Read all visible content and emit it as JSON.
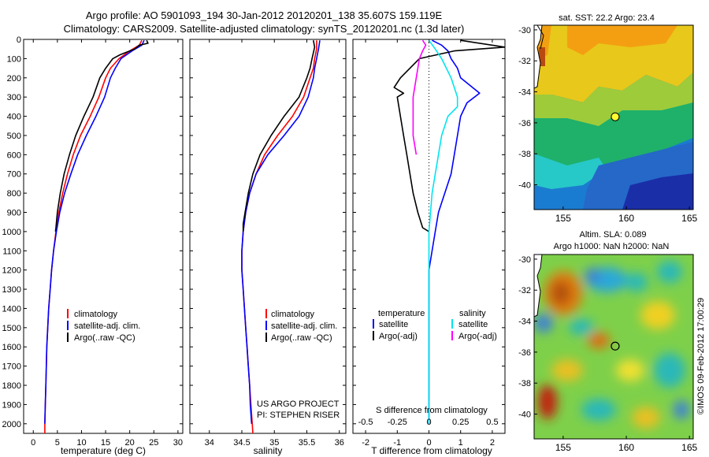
{
  "header": {
    "line1": "Argo profile: AO 5901093_194 30-Jan-2012 20120201_138 35.607S 159.119E",
    "line2": "Climatology: CARS2009. Satellite-adjusted climatology: synTS_20120201.nc (1.3d later)"
  },
  "credits": {
    "project": "US ARGO PROJECT",
    "pi": "PI: STEPHEN RISER",
    "stamp": "©IMOS 09-Feb-2012 17:00:29"
  },
  "colors": {
    "climatology": "#ff0000",
    "satellite": "#0000ff",
    "argo": "#000000",
    "salinity_satellite": "#00e5ee",
    "salinity_argo": "#ff00ff"
  },
  "chart_data": [
    {
      "type": "line",
      "id": "temperature",
      "xlabel": "temperature (deg C)",
      "ylabel": "",
      "xlim": [
        -2,
        31
      ],
      "ylim": [
        2050,
        0
      ],
      "xticks": [
        0,
        5,
        10,
        15,
        20,
        25,
        30
      ],
      "yticks": [
        0,
        100,
        200,
        300,
        400,
        500,
        600,
        700,
        800,
        900,
        1000,
        1100,
        1200,
        1300,
        1400,
        1500,
        1600,
        1700,
        1800,
        1900,
        2000
      ],
      "legend": [
        "climatology",
        "satellite-adj. clim.",
        "Argo(..raw -QC)"
      ],
      "series": [
        {
          "name": "climatology",
          "color": "#ff0000",
          "points": [
            [
              22.5,
              5
            ],
            [
              22,
              30
            ],
            [
              20,
              60
            ],
            [
              17.8,
              100
            ],
            [
              16,
              150
            ],
            [
              15,
              200
            ],
            [
              13.6,
              300
            ],
            [
              11.8,
              400
            ],
            [
              9.8,
              500
            ],
            [
              8.3,
              600
            ],
            [
              7.1,
              700
            ],
            [
              6.1,
              800
            ],
            [
              5.3,
              900
            ],
            [
              4.7,
              1000
            ],
            [
              4.2,
              1100
            ],
            [
              3.8,
              1200
            ],
            [
              3.5,
              1300
            ],
            [
              3.2,
              1400
            ],
            [
              3,
              1500
            ],
            [
              2.8,
              1600
            ],
            [
              2.7,
              1700
            ],
            [
              2.6,
              1800
            ],
            [
              2.5,
              1900
            ],
            [
              2.4,
              2000
            ],
            [
              2.4,
              2050
            ]
          ]
        },
        {
          "name": "satellite-adj. clim.",
          "color": "#0000ff",
          "points": [
            [
              23,
              5
            ],
            [
              22.5,
              30
            ],
            [
              20.5,
              60
            ],
            [
              18.2,
              100
            ],
            [
              17,
              150
            ],
            [
              16,
              200
            ],
            [
              14.8,
              300
            ],
            [
              13,
              400
            ],
            [
              11,
              500
            ],
            [
              9.2,
              600
            ],
            [
              7.8,
              700
            ],
            [
              6.5,
              800
            ],
            [
              5.5,
              900
            ],
            [
              4.8,
              1000
            ],
            [
              4.2,
              1100
            ],
            [
              3.8,
              1200
            ],
            [
              3.5,
              1300
            ],
            [
              3.2,
              1400
            ],
            [
              3,
              1500
            ],
            [
              2.8,
              1600
            ],
            [
              2.7,
              1700
            ],
            [
              2.6,
              1800
            ],
            [
              2.5,
              1900
            ],
            [
              2.4,
              2000
            ]
          ]
        },
        {
          "name": "Argo(..raw -QC)",
          "color": "#000000",
          "points": [
            [
              23.5,
              5
            ],
            [
              23.8,
              20
            ],
            [
              22,
              30
            ],
            [
              21,
              50
            ],
            [
              18,
              80
            ],
            [
              16.5,
              100
            ],
            [
              15,
              150
            ],
            [
              13.8,
              200
            ],
            [
              12.4,
              300
            ],
            [
              10.5,
              400
            ],
            [
              8.8,
              500
            ],
            [
              7.5,
              600
            ],
            [
              6.4,
              700
            ],
            [
              5.6,
              800
            ],
            [
              5,
              900
            ],
            [
              4.7,
              980
            ],
            [
              4.6,
              1000
            ]
          ]
        }
      ]
    },
    {
      "type": "line",
      "id": "salinity",
      "xlabel": "salinity",
      "ylabel": "",
      "xlim": [
        33.7,
        36.1
      ],
      "ylim": [
        2050,
        0
      ],
      "xticks": [
        34,
        34.5,
        35,
        35.5,
        36
      ],
      "legend": [
        "climatology",
        "satellite-adj. clim.",
        "Argo(..raw -QC)"
      ],
      "series": [
        {
          "name": "climatology",
          "color": "#ff0000",
          "points": [
            [
              35.65,
              5
            ],
            [
              35.65,
              50
            ],
            [
              35.62,
              100
            ],
            [
              35.6,
              150
            ],
            [
              35.55,
              200
            ],
            [
              35.45,
              300
            ],
            [
              35.28,
              400
            ],
            [
              35.05,
              500
            ],
            [
              34.85,
              600
            ],
            [
              34.72,
              700
            ],
            [
              34.62,
              800
            ],
            [
              34.56,
              900
            ],
            [
              34.52,
              1000
            ],
            [
              34.5,
              1100
            ],
            [
              34.5,
              1200
            ],
            [
              34.52,
              1300
            ],
            [
              34.54,
              1400
            ],
            [
              34.56,
              1500
            ],
            [
              34.58,
              1600
            ],
            [
              34.6,
              1700
            ],
            [
              34.62,
              1800
            ],
            [
              34.64,
              1900
            ],
            [
              34.66,
              2000
            ],
            [
              34.67,
              2050
            ]
          ]
        },
        {
          "name": "satellite-adj. clim.",
          "color": "#0000ff",
          "points": [
            [
              35.7,
              5
            ],
            [
              35.68,
              50
            ],
            [
              35.65,
              100
            ],
            [
              35.62,
              150
            ],
            [
              35.6,
              200
            ],
            [
              35.52,
              300
            ],
            [
              35.38,
              400
            ],
            [
              35.15,
              500
            ],
            [
              34.9,
              600
            ],
            [
              34.72,
              700
            ],
            [
              34.62,
              800
            ],
            [
              34.56,
              900
            ],
            [
              34.52,
              1000
            ],
            [
              34.5,
              1100
            ],
            [
              34.5,
              1200
            ],
            [
              34.52,
              1300
            ],
            [
              34.54,
              1400
            ],
            [
              34.56,
              1500
            ],
            [
              34.58,
              1600
            ],
            [
              34.6,
              1700
            ],
            [
              34.62,
              1800
            ],
            [
              34.63,
              1900
            ],
            [
              34.65,
              2000
            ]
          ]
        },
        {
          "name": "Argo(..raw -QC)",
          "color": "#000000",
          "points": [
            [
              35.6,
              5
            ],
            [
              35.62,
              40
            ],
            [
              35.58,
              100
            ],
            [
              35.55,
              150
            ],
            [
              35.5,
              200
            ],
            [
              35.38,
              300
            ],
            [
              35.15,
              400
            ],
            [
              34.95,
              500
            ],
            [
              34.78,
              600
            ],
            [
              34.67,
              700
            ],
            [
              34.6,
              800
            ],
            [
              34.55,
              900
            ],
            [
              34.52,
              960
            ],
            [
              34.52,
              1000
            ]
          ]
        }
      ]
    },
    {
      "type": "line",
      "id": "difference",
      "xlabel": "T difference from climatology",
      "xlabel_top": "S difference from climatology",
      "xlim": [
        -2.4,
        2.4
      ],
      "ylim": [
        2050,
        0
      ],
      "xticks": [
        -2,
        -1,
        0,
        1,
        2
      ],
      "xticks_s": [
        "-0.5",
        "-0.25",
        "0",
        "0.25",
        "0.5"
      ],
      "xticks_s_at": [
        -2,
        -1,
        0,
        1,
        2
      ],
      "legend_groups": [
        {
          "title": "temperature",
          "items": [
            "satellite",
            "Argo(-adj)"
          ]
        },
        {
          "title": "salinity",
          "items": [
            "satellite",
            "Argo(-adj)"
          ]
        }
      ],
      "series": [
        {
          "name": "temperature satellite",
          "color": "#0000ff",
          "points": [
            [
              0.1,
              5
            ],
            [
              0.4,
              30
            ],
            [
              0.6,
              60
            ],
            [
              0.7,
              100
            ],
            [
              0.9,
              150
            ],
            [
              1,
              200
            ],
            [
              1.6,
              280
            ],
            [
              1.2,
              330
            ],
            [
              1,
              400
            ],
            [
              0.9,
              500
            ],
            [
              0.8,
              600
            ],
            [
              0.7,
              700
            ],
            [
              0.5,
              800
            ],
            [
              0.3,
              900
            ],
            [
              0.2,
              1000
            ],
            [
              0.1,
              1100
            ],
            [
              0,
              1200
            ],
            [
              0,
              2000
            ]
          ]
        },
        {
          "name": "temperature Argo(-adj)",
          "color": "#000000",
          "points": [
            [
              1,
              5
            ],
            [
              1.4,
              15
            ],
            [
              2.4,
              40
            ],
            [
              0.8,
              60
            ],
            [
              -0.3,
              100
            ],
            [
              -0.6,
              150
            ],
            [
              -0.9,
              200
            ],
            [
              -1.1,
              250
            ],
            [
              -0.8,
              280
            ],
            [
              -1,
              300
            ],
            [
              -0.9,
              400
            ],
            [
              -0.8,
              500
            ],
            [
              -0.7,
              600
            ],
            [
              -0.6,
              700
            ],
            [
              -0.5,
              800
            ],
            [
              -0.35,
              900
            ],
            [
              -0.2,
              980
            ],
            [
              0,
              1000
            ]
          ]
        },
        {
          "name": "salinity satellite",
          "color": "#00e5ee",
          "points": [
            [
              0,
              5
            ],
            [
              0.2,
              50
            ],
            [
              0.4,
              100
            ],
            [
              0.7,
              200
            ],
            [
              0.9,
              300
            ],
            [
              0.9,
              350
            ],
            [
              0.6,
              400
            ],
            [
              0.4,
              500
            ],
            [
              0.3,
              600
            ],
            [
              0.2,
              700
            ],
            [
              0.1,
              800
            ],
            [
              0.05,
              900
            ],
            [
              0,
              1000
            ],
            [
              0,
              2000
            ]
          ]
        },
        {
          "name": "salinity Argo(-adj)",
          "color": "#ff00ff",
          "points": [
            [
              -0.2,
              5
            ],
            [
              -0.1,
              30
            ],
            [
              -0.2,
              60
            ],
            [
              -0.3,
              100
            ],
            [
              -0.4,
              200
            ],
            [
              -0.5,
              300
            ],
            [
              -0.5,
              400
            ],
            [
              -0.5,
              500
            ],
            [
              -0.4,
              600
            ]
          ]
        }
      ]
    }
  ],
  "maps": [
    {
      "id": "sst",
      "title": "sat. SST: 22.2  Argo: 23.4",
      "xticks": [
        155,
        160,
        165
      ],
      "yticks": [
        -30,
        -32,
        -34,
        -36,
        -38,
        -40
      ],
      "xlim": [
        152.7,
        165.3
      ],
      "ylim": [
        -29.7,
        -41.6
      ],
      "marker": [
        159.12,
        -35.61
      ]
    },
    {
      "id": "sla",
      "title": "Altim. SLA: 0.089",
      "title2": "Argo h1000: NaN h2000: NaN",
      "xticks": [
        155,
        160,
        165
      ],
      "yticks": [
        -30,
        -32,
        -34,
        -36,
        -38,
        -40
      ],
      "xlim": [
        152.7,
        165.3
      ],
      "ylim": [
        -29.7,
        -41.6
      ],
      "marker": [
        159.12,
        -35.61
      ]
    }
  ]
}
